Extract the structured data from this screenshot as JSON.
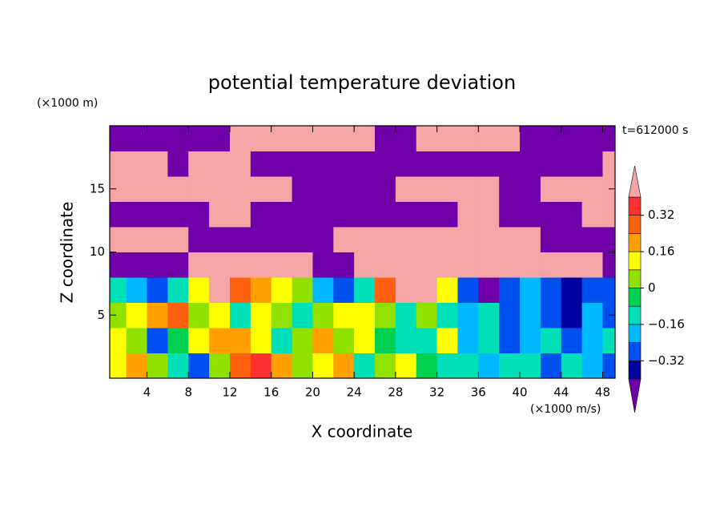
{
  "chart_data": {
    "type": "contour",
    "title": "potential temperature deviation",
    "subtitle": "t=612000 s",
    "x_label": "X coordinate",
    "y_label": "Z coordinate",
    "x_unit": "(×1000 m/s)",
    "y_unit": "(×1000 m)",
    "xlim": [
      0.4,
      49.2
    ],
    "ylim": [
      0,
      20
    ],
    "xticks": [
      4,
      8,
      12,
      16,
      20,
      24,
      28,
      32,
      36,
      40,
      44,
      48
    ],
    "yticks": [
      5,
      10,
      15
    ],
    "x": [
      1,
      3,
      5,
      7,
      9,
      11,
      13,
      15,
      17,
      19,
      21,
      23,
      25,
      27,
      29,
      31,
      33,
      35,
      37,
      39,
      41,
      43,
      45,
      47,
      49
    ],
    "y": [
      1,
      3,
      5,
      7,
      9,
      11,
      13,
      15,
      17,
      19
    ],
    "z": [
      [
        0.1,
        0.2,
        0.05,
        -0.1,
        -0.3,
        0.05,
        0.3,
        0.35,
        0.2,
        0.0,
        0.1,
        0.2,
        -0.1,
        0.0,
        0.1,
        -0.05,
        -0.15,
        -0.1,
        -0.2,
        -0.1,
        -0.15,
        -0.3,
        -0.1,
        -0.2,
        -0.3
      ],
      [
        0.15,
        0.0,
        -0.3,
        -0.05,
        0.1,
        0.2,
        0.2,
        0.1,
        -0.1,
        0.05,
        0.2,
        0.0,
        0.1,
        -0.05,
        -0.1,
        -0.1,
        0.15,
        -0.2,
        -0.1,
        -0.3,
        -0.2,
        -0.1,
        -0.3,
        -0.2,
        -0.1
      ],
      [
        0.05,
        0.1,
        0.2,
        0.3,
        0.0,
        0.15,
        -0.1,
        0.1,
        0.0,
        -0.1,
        0.05,
        0.15,
        0.1,
        0.0,
        -0.1,
        0.0,
        -0.15,
        -0.2,
        -0.15,
        -0.25,
        -0.2,
        -0.3,
        -0.35,
        -0.2,
        -0.3
      ],
      [
        -0.1,
        -0.2,
        -0.3,
        -0.1,
        0.1,
        0.5,
        0.3,
        0.2,
        0.1,
        0.0,
        -0.2,
        -0.3,
        -0.1,
        0.3,
        0.5,
        0.5,
        0.1,
        -0.3,
        -0.5,
        -0.3,
        -0.2,
        -0.3,
        -0.35,
        -0.3,
        -0.3
      ],
      [
        -0.5,
        -0.5,
        -0.5,
        -0.5,
        0.5,
        0.5,
        0.5,
        0.5,
        0.5,
        0.5,
        -0.5,
        -0.5,
        0.5,
        0.5,
        0.5,
        0.5,
        0.5,
        0.5,
        0.5,
        0.5,
        0.5,
        0.5,
        0.5,
        0.5,
        -0.5
      ],
      [
        0.5,
        0.5,
        0.5,
        0.5,
        -0.5,
        -0.5,
        -0.5,
        -0.5,
        -0.5,
        -0.5,
        -0.5,
        0.5,
        0.5,
        0.5,
        0.5,
        0.5,
        0.5,
        0.5,
        0.5,
        0.5,
        0.5,
        -0.5,
        -0.5,
        -0.5,
        -0.5
      ],
      [
        -0.5,
        -0.5,
        -0.5,
        -0.5,
        -0.5,
        0.5,
        0.5,
        -0.5,
        -0.5,
        -0.5,
        -0.5,
        -0.5,
        -0.5,
        -0.5,
        -0.5,
        -0.5,
        -0.5,
        0.5,
        0.5,
        -0.5,
        -0.5,
        -0.5,
        -0.5,
        0.5,
        0.5
      ],
      [
        0.5,
        0.5,
        0.5,
        0.5,
        0.5,
        0.5,
        0.5,
        0.5,
        0.5,
        -0.5,
        -0.5,
        -0.5,
        -0.5,
        -0.5,
        0.5,
        0.5,
        0.5,
        0.5,
        0.5,
        -0.5,
        -0.5,
        0.5,
        0.5,
        0.5,
        0.5
      ],
      [
        0.5,
        0.5,
        0.5,
        -0.5,
        0.5,
        0.5,
        0.5,
        -0.5,
        -0.5,
        -0.5,
        -0.5,
        -0.5,
        -0.5,
        -0.5,
        -0.5,
        -0.5,
        -0.5,
        -0.5,
        -0.5,
        -0.5,
        -0.5,
        -0.5,
        -0.5,
        -0.5,
        0.5
      ],
      [
        -0.5,
        -0.5,
        -0.5,
        -0.5,
        -0.5,
        -0.5,
        0.5,
        0.5,
        0.5,
        0.5,
        0.5,
        0.5,
        0.5,
        -0.5,
        -0.5,
        0.5,
        0.5,
        0.5,
        0.5,
        0.5,
        -0.5,
        -0.5,
        -0.5,
        -0.5,
        -0.5
      ]
    ],
    "levels": [
      -0.4,
      -0.32,
      -0.24,
      -0.16,
      -0.08,
      0,
      0.08,
      0.16,
      0.24,
      0.32,
      0.4
    ],
    "colors": [
      "#7000a8",
      "#0000a0",
      "#0050f0",
      "#00b8ff",
      "#00e0b8",
      "#00d050",
      "#90e000",
      "#ffff00",
      "#ffa000",
      "#ff6010",
      "#ff3030",
      "#f5a5a5"
    ],
    "colorbar_ticks": [
      {
        "value": -0.32,
        "label": "−0.32"
      },
      {
        "value": -0.16,
        "label": "−0.16"
      },
      0,
      0.16,
      0.32
    ]
  }
}
